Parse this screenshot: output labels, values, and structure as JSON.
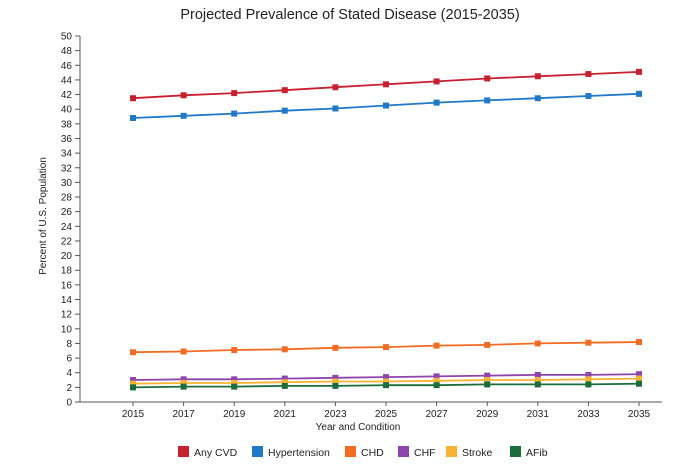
{
  "chart_data": {
    "type": "line",
    "title": "Projected Prevalence of Stated Disease (2015-2035)",
    "xlabel": "Year and Condition",
    "ylabel": "Percent of U.S. Population",
    "x": [
      "2015",
      "2017",
      "2019",
      "2021",
      "2023",
      "2025",
      "2027",
      "2029",
      "2031",
      "2033",
      "2035"
    ],
    "ylim": [
      0,
      50
    ],
    "yticks": [
      "0",
      "2",
      "4",
      "6",
      "8",
      "10",
      "12",
      "14",
      "16",
      "18",
      "20",
      "22",
      "24",
      "26",
      "28",
      "30",
      "32",
      "34",
      "36",
      "38",
      "40",
      "42",
      "44",
      "46",
      "48",
      "50"
    ],
    "grid": false,
    "legend_position": "bottom",
    "series": [
      {
        "name": "Any CVD",
        "color": "#c8202f",
        "values": [
          41.5,
          41.9,
          42.2,
          42.6,
          43.0,
          43.4,
          43.8,
          44.2,
          44.5,
          44.8,
          45.1
        ]
      },
      {
        "name": "Hypertension",
        "color": "#1f78c8",
        "values": [
          38.8,
          39.1,
          39.4,
          39.8,
          40.1,
          40.5,
          40.9,
          41.2,
          41.5,
          41.8,
          42.1
        ]
      },
      {
        "name": "CHD",
        "color": "#f26b22",
        "values": [
          6.8,
          6.9,
          7.1,
          7.2,
          7.4,
          7.5,
          7.7,
          7.8,
          8.0,
          8.1,
          8.2
        ]
      },
      {
        "name": "CHF",
        "color": "#8e44ad",
        "values": [
          3.0,
          3.1,
          3.1,
          3.2,
          3.3,
          3.4,
          3.5,
          3.6,
          3.7,
          3.7,
          3.8
        ]
      },
      {
        "name": "Stroke",
        "color": "#f9b233",
        "values": [
          2.5,
          2.6,
          2.6,
          2.7,
          2.8,
          2.8,
          2.9,
          3.0,
          3.0,
          3.1,
          3.2
        ]
      },
      {
        "name": "AFib",
        "color": "#1b6e3a",
        "values": [
          2.0,
          2.1,
          2.1,
          2.2,
          2.2,
          2.3,
          2.3,
          2.4,
          2.4,
          2.4,
          2.5
        ]
      }
    ]
  }
}
